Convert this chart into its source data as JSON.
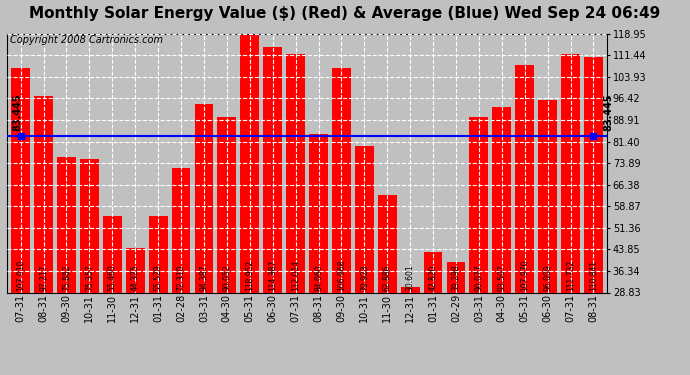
{
  "title": "Monthly Solar Energy Value ($) (Red) & Average (Blue) Wed Sep 24 06:49",
  "copyright": "Copyright 2008 Cartronics.com",
  "categories": [
    "07-31",
    "08-31",
    "09-30",
    "10-31",
    "11-30",
    "12-31",
    "01-31",
    "02-28",
    "03-31",
    "04-30",
    "05-31",
    "06-30",
    "07-31",
    "08-31",
    "09-30",
    "10-31",
    "11-30",
    "12-31",
    "01-31",
    "02-29",
    "03-31",
    "04-30",
    "05-31",
    "06-30",
    "07-31",
    "08-31"
  ],
  "values": [
    107.01,
    97.217,
    75.882,
    75.357,
    55.46,
    44.325,
    55.529,
    72.31,
    94.387,
    90.052,
    118.952,
    114.387,
    112.014,
    84.06,
    106.968,
    79.923,
    62.886,
    30.601,
    42.82,
    39.298,
    90.077,
    93.507,
    107.97,
    96.009,
    111.732,
    110.841
  ],
  "average": 83.445,
  "bar_color": "#ff0000",
  "avg_line_color": "#0000ff",
  "background_color": "#c0c0c0",
  "plot_bg_color": "#c0c0c0",
  "grid_color": "#ffffff",
  "ylim_min": 28.83,
  "ylim_max": 118.95,
  "yticks": [
    28.83,
    36.34,
    43.85,
    51.36,
    58.87,
    66.38,
    73.89,
    81.4,
    88.91,
    96.42,
    103.93,
    111.44,
    118.95
  ],
  "title_fontsize": 11,
  "copyright_fontsize": 7,
  "tick_fontsize": 7,
  "value_fontsize": 5.5,
  "avg_label": "83.445"
}
